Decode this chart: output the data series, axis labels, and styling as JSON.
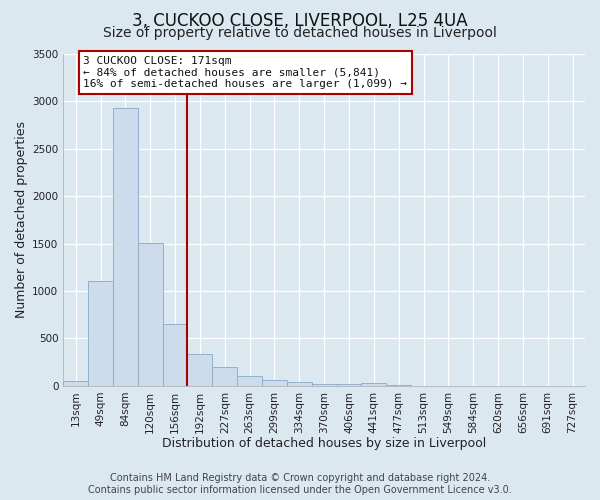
{
  "title": "3, CUCKOO CLOSE, LIVERPOOL, L25 4UA",
  "subtitle": "Size of property relative to detached houses in Liverpool",
  "xlabel": "Distribution of detached houses by size in Liverpool",
  "ylabel": "Number of detached properties",
  "bar_labels": [
    "13sqm",
    "49sqm",
    "84sqm",
    "120sqm",
    "156sqm",
    "192sqm",
    "227sqm",
    "263sqm",
    "299sqm",
    "334sqm",
    "370sqm",
    "406sqm",
    "441sqm",
    "477sqm",
    "513sqm",
    "549sqm",
    "584sqm",
    "620sqm",
    "656sqm",
    "691sqm",
    "727sqm"
  ],
  "bar_values": [
    50,
    1110,
    2930,
    1510,
    650,
    340,
    200,
    105,
    65,
    40,
    20,
    15,
    25,
    5,
    0,
    0,
    0,
    0,
    0,
    0,
    0
  ],
  "bar_color": "#ccdcec",
  "bar_edge_color": "#88aac8",
  "vline_color": "#aa0000",
  "annotation_text": "3 CUCKOO CLOSE: 171sqm\n← 84% of detached houses are smaller (5,841)\n16% of semi-detached houses are larger (1,099) →",
  "annotation_box_color": "#ffffff",
  "annotation_box_edge": "#aa0000",
  "ylim": [
    0,
    3500
  ],
  "footer1": "Contains HM Land Registry data © Crown copyright and database right 2024.",
  "footer2": "Contains public sector information licensed under the Open Government Licence v3.0.",
  "background_color": "#dce8f0",
  "grid_color": "#ffffff",
  "title_fontsize": 12,
  "subtitle_fontsize": 10,
  "axis_label_fontsize": 9,
  "tick_fontsize": 7.5,
  "footer_fontsize": 7
}
